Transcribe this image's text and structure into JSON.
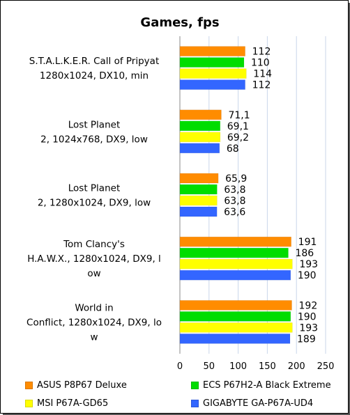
{
  "chart_data": {
    "type": "bar",
    "orientation": "horizontal",
    "title": "Games, fps",
    "xlim": [
      0,
      250
    ],
    "xticks": [
      0,
      50,
      100,
      150,
      200,
      250
    ],
    "grid": true,
    "legend_position": "bottom",
    "categories": [
      [
        "S.T.A.L.K.E.R. Call of Pripyat",
        "1280x1024, DX10, min"
      ],
      [
        "Lost Planet",
        "2, 1024x768, DX9, low"
      ],
      [
        "Lost Planet",
        "2, 1280x1024, DX9, low"
      ],
      [
        "Tom Clancy's",
        "H.A.W.X., 1280x1024, DX9, l",
        "ow"
      ],
      [
        "World in",
        "Conflict, 1280x1024, DX9, lo",
        "w"
      ]
    ],
    "series": [
      {
        "name": "ASUS P8P67 Deluxe",
        "color": "#ff8c00",
        "values": [
          112,
          71.1,
          65.9,
          191,
          192
        ],
        "labels": [
          "112",
          "71,1",
          "65,9",
          "191",
          "192"
        ]
      },
      {
        "name": "ECS P67H2-A Black Extreme",
        "color": "#00dd00",
        "values": [
          110,
          69.1,
          63.8,
          186,
          190
        ],
        "labels": [
          "110",
          "69,1",
          "63,8",
          "186",
          "190"
        ]
      },
      {
        "name": "MSI P67A-GD65",
        "color": "#ffff00",
        "values": [
          114,
          69.2,
          63.8,
          193,
          193
        ],
        "labels": [
          "114",
          "69,2",
          "63,8",
          "193",
          "193"
        ]
      },
      {
        "name": "GIGABYTE GA-P67A-UD4",
        "color": "#3366ff",
        "values": [
          112,
          68,
          63.6,
          190,
          189
        ],
        "labels": [
          "112",
          "68",
          "63,6",
          "190",
          "189"
        ]
      }
    ]
  }
}
